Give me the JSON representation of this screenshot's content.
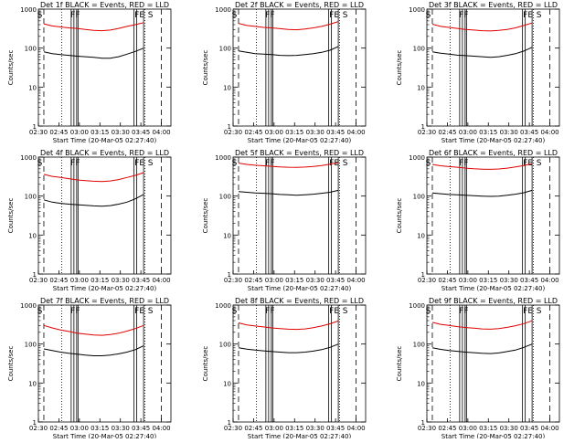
{
  "chart_data": {
    "type": "line",
    "layout": "3x3 grid",
    "xlabel": "Start Time (20-Mar-05 02:27:40)",
    "ylabel": "Counts/sec",
    "y_scale": "log",
    "ylim": [
      1,
      1000
    ],
    "y_ticks": [
      1,
      10,
      100,
      1000
    ],
    "y_tick_labels": [
      "1",
      "10",
      "100",
      "1000"
    ],
    "xlim": [
      "02:30",
      "04:07"
    ],
    "x_tick_labels": [
      "02:30",
      "02:45",
      "03:00",
      "03:15",
      "03:30",
      "03:45",
      "04:00"
    ],
    "legend_text": "BLACK = Events, RED = LLD",
    "colors": {
      "events": "#000000",
      "lld": "#e00000",
      "axes": "#000000",
      "background": "#ffffff"
    },
    "markers": {
      "dashed": [
        "02:34",
        "04:00"
      ],
      "dotted": [
        "02:47",
        "03:48"
      ],
      "solid": [
        "02:54",
        "02:56",
        "02:58",
        "02:59",
        "03:40",
        "03:42",
        "03:47"
      ],
      "labels": [
        {
          "text": "S",
          "t": "02:31"
        },
        {
          "text": "FF",
          "t": "02:57"
        },
        {
          "text": "FE",
          "t": "03:44"
        },
        {
          "text": "S",
          "t": "03:52"
        }
      ]
    },
    "panels": [
      {
        "title": "Det 1f BLACK = Events, RED = LLD",
        "series": [
          {
            "name": "Events",
            "values": [
              80,
              72,
              68,
              65,
              62,
              60,
              58,
              55,
              55,
              60,
              70,
              82,
              100
            ]
          },
          {
            "name": "LLD",
            "values": [
              420,
              370,
              350,
              330,
              320,
              300,
              285,
              280,
              290,
              320,
              360,
              400,
              450
            ]
          }
        ]
      },
      {
        "title": "Det 2f BLACK = Events, RED = LLD",
        "series": [
          {
            "name": "Events",
            "values": [
              85,
              78,
              72,
              70,
              68,
              65,
              64,
              65,
              68,
              72,
              78,
              88,
              110
            ]
          },
          {
            "name": "LLD",
            "values": [
              430,
              380,
              360,
              340,
              330,
              315,
              300,
              295,
              310,
              330,
              360,
              410,
              480
            ]
          }
        ]
      },
      {
        "title": "Det 3f BLACK = Events, RED = LLD",
        "series": [
          {
            "name": "Events",
            "values": [
              80,
              74,
              70,
              66,
              64,
              62,
              60,
              58,
              60,
              65,
              72,
              84,
              105
            ]
          },
          {
            "name": "LLD",
            "values": [
              410,
              360,
              340,
              320,
              300,
              290,
              280,
              275,
              285,
              300,
              330,
              380,
              440
            ]
          }
        ]
      },
      {
        "title": "Det 4f BLACK = Events, RED = LLD",
        "series": [
          {
            "name": "Events",
            "values": [
              80,
              70,
              65,
              62,
              60,
              58,
              56,
              55,
              57,
              62,
              70,
              85,
              110
            ]
          },
          {
            "name": "LLD",
            "values": [
              360,
              320,
              300,
              280,
              260,
              250,
              240,
              235,
              245,
              265,
              300,
              340,
              400
            ]
          }
        ]
      },
      {
        "title": "Det 5f BLACK = Events, RED = LLD",
        "series": [
          {
            "name": "Events",
            "values": [
              130,
              125,
              120,
              118,
              115,
              110,
              108,
              105,
              108,
              112,
              118,
              125,
              140
            ]
          },
          {
            "name": "LLD",
            "values": [
              700,
              650,
              620,
              600,
              580,
              560,
              550,
              545,
              555,
              575,
              610,
              660,
              720
            ]
          }
        ]
      },
      {
        "title": "Det 6f BLACK = Events, RED = LLD",
        "series": [
          {
            "name": "Events",
            "values": [
              120,
              115,
              110,
              108,
              105,
              102,
              100,
              98,
              100,
              105,
              112,
              122,
              140
            ]
          },
          {
            "name": "LLD",
            "values": [
              650,
              600,
              570,
              550,
              520,
              500,
              490,
              485,
              495,
              520,
              560,
              610,
              680
            ]
          }
        ]
      },
      {
        "title": "Det 7f BLACK = Events, RED = LLD",
        "series": [
          {
            "name": "Events",
            "values": [
              75,
              68,
              62,
              58,
              55,
              52,
              50,
              50,
              52,
              56,
              62,
              72,
              90
            ]
          },
          {
            "name": "LLD",
            "values": [
              300,
              260,
              230,
              210,
              190,
              180,
              170,
              168,
              175,
              190,
              215,
              250,
              300
            ]
          }
        ]
      },
      {
        "title": "Det 8f BLACK = Events, RED = LLD",
        "series": [
          {
            "name": "Events",
            "values": [
              80,
              74,
              70,
              67,
              64,
              62,
              60,
              60,
              62,
              66,
              72,
              82,
              100
            ]
          },
          {
            "name": "LLD",
            "values": [
              350,
              310,
              290,
              275,
              260,
              250,
              240,
              238,
              245,
              262,
              290,
              330,
              390
            ]
          }
        ]
      },
      {
        "title": "Det 9f BLACK = Events, RED = LLD",
        "series": [
          {
            "name": "Events",
            "values": [
              80,
              73,
              68,
              65,
              62,
              60,
              58,
              57,
              59,
              64,
              70,
              82,
              100
            ]
          },
          {
            "name": "LLD",
            "values": [
              360,
              320,
              300,
              280,
              265,
              255,
              245,
              240,
              250,
              268,
              295,
              335,
              395
            ]
          }
        ]
      }
    ]
  }
}
